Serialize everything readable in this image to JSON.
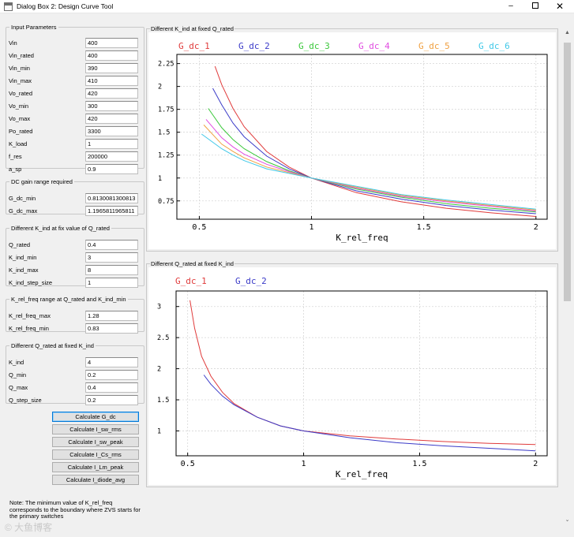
{
  "window": {
    "title": "Dialog Box 2: Design Curve Tool",
    "minimize": "–",
    "close": "✕"
  },
  "input_parameters": {
    "legend": "Input Parameters",
    "rows": [
      {
        "label": "Vin",
        "value": "400"
      },
      {
        "label": "Vin_rated",
        "value": "400"
      },
      {
        "label": "Vin_min",
        "value": "390"
      },
      {
        "label": "Vin_max",
        "value": "410"
      },
      {
        "label": "Vo_rated",
        "value": "420"
      },
      {
        "label": "Vo_min",
        "value": "300"
      },
      {
        "label": "Vo_max",
        "value": "420"
      },
      {
        "label": "Po_rated",
        "value": "3300"
      },
      {
        "label": "K_load",
        "value": "1"
      },
      {
        "label": "f_res",
        "value": "200000"
      },
      {
        "label": "a_sp",
        "value": "0.9"
      }
    ]
  },
  "dc_gain": {
    "legend": "DC gain range required",
    "rows": [
      {
        "label": "G_dc_min",
        "value": "0.8130081300813"
      },
      {
        "label": "G_dc_max",
        "value": "1.1965811965811"
      }
    ]
  },
  "k_ind": {
    "legend": "Different K_ind at fix value of Q_rated",
    "rows": [
      {
        "label": "Q_rated",
        "value": "0.4"
      },
      {
        "label": "K_ind_min",
        "value": "3"
      },
      {
        "label": "K_ind_max",
        "value": "8"
      },
      {
        "label": "K_ind_step_size",
        "value": "1"
      }
    ]
  },
  "k_rel": {
    "legend": "K_rel_freq range at Q_rated and K_ind_min",
    "rows": [
      {
        "label": "K_rel_freq_max",
        "value": "1.28"
      },
      {
        "label": "K_rel_freq_min",
        "value": "0.83"
      }
    ]
  },
  "q_rated": {
    "legend": "Different Q_rated at fixed K_ind",
    "rows": [
      {
        "label": "K_ind",
        "value": "4"
      },
      {
        "label": "Q_min",
        "value": "0.2"
      },
      {
        "label": "Q_max",
        "value": "0.4"
      },
      {
        "label": "Q_step_size",
        "value": "0.2"
      }
    ]
  },
  "buttons": [
    {
      "label": "Calculate G_dc"
    },
    {
      "label": "Calculate I_sw_rms"
    },
    {
      "label": "Calculate I_sw_peak"
    },
    {
      "label": "Calculate I_Cs_rms"
    },
    {
      "label": "Calculate I_Lm_peak"
    },
    {
      "label": "Calculate I_diode_avg"
    }
  ],
  "note": "Note: The minimum value of K_rel_freq corresponds to the boundary where ZVS starts for the primary switches",
  "watermark": "© 大鱼博客",
  "chart_data": [
    {
      "type": "line",
      "caption": "Different K_ind at fixed Q_rated",
      "xlabel": "K_rel_freq",
      "xlim": [
        0.4,
        2.05
      ],
      "ylim": [
        0.55,
        2.35
      ],
      "xticks": [
        0.5,
        1,
        1.5,
        2
      ],
      "xtick_labels": [
        "0.5",
        "1",
        "1.5",
        "2"
      ],
      "yticks": [
        0.75,
        1,
        1.25,
        1.5,
        1.75,
        2,
        2.25
      ],
      "ytick_labels": [
        "0.75",
        "1",
        "1.25",
        "1.5",
        "1.75",
        "2",
        "2.25"
      ],
      "grid": true,
      "legend_position": "top",
      "series": [
        {
          "name": "G_dc_1",
          "color": "#e03b3b",
          "x": [
            0.57,
            0.6,
            0.65,
            0.7,
            0.8,
            0.9,
            1.0,
            1.2,
            1.4,
            1.6,
            1.8,
            2.0
          ],
          "y": [
            2.22,
            2.02,
            1.76,
            1.56,
            1.29,
            1.12,
            1.0,
            0.84,
            0.74,
            0.67,
            0.62,
            0.58
          ]
        },
        {
          "name": "G_dc_2",
          "color": "#3b3bc8",
          "x": [
            0.56,
            0.6,
            0.65,
            0.7,
            0.8,
            0.9,
            1.0,
            1.2,
            1.4,
            1.6,
            1.8,
            2.0
          ],
          "y": [
            1.98,
            1.8,
            1.6,
            1.45,
            1.24,
            1.1,
            1.0,
            0.86,
            0.77,
            0.7,
            0.65,
            0.61
          ]
        },
        {
          "name": "G_dc_3",
          "color": "#3bc83b",
          "x": [
            0.54,
            0.6,
            0.65,
            0.7,
            0.8,
            0.9,
            1.0,
            1.2,
            1.4,
            1.6,
            1.8,
            2.0
          ],
          "y": [
            1.76,
            1.55,
            1.42,
            1.32,
            1.18,
            1.08,
            1.0,
            0.88,
            0.79,
            0.72,
            0.67,
            0.63
          ]
        },
        {
          "name": "G_dc_4",
          "color": "#e04ce0",
          "x": [
            0.53,
            0.6,
            0.65,
            0.7,
            0.8,
            0.9,
            1.0,
            1.2,
            1.4,
            1.6,
            1.8,
            2.0
          ],
          "y": [
            1.64,
            1.44,
            1.34,
            1.26,
            1.15,
            1.07,
            1.0,
            0.89,
            0.8,
            0.74,
            0.69,
            0.64
          ]
        },
        {
          "name": "G_dc_5",
          "color": "#f0a040",
          "x": [
            0.52,
            0.6,
            0.65,
            0.7,
            0.8,
            0.9,
            1.0,
            1.2,
            1.4,
            1.6,
            1.8,
            2.0
          ],
          "y": [
            1.58,
            1.37,
            1.29,
            1.22,
            1.12,
            1.06,
            1.0,
            0.9,
            0.81,
            0.75,
            0.7,
            0.65
          ]
        },
        {
          "name": "G_dc_6",
          "color": "#40c8e8",
          "x": [
            0.51,
            0.6,
            0.65,
            0.7,
            0.8,
            0.9,
            1.0,
            1.2,
            1.4,
            1.6,
            1.8,
            2.0
          ],
          "y": [
            1.48,
            1.32,
            1.25,
            1.19,
            1.1,
            1.05,
            1.0,
            0.91,
            0.82,
            0.76,
            0.71,
            0.66
          ]
        }
      ]
    },
    {
      "type": "line",
      "caption": "Different Q_rated at fixed K_ind",
      "xlabel": "K_rel_freq",
      "xlim": [
        0.45,
        2.05
      ],
      "ylim": [
        0.6,
        3.25
      ],
      "xticks": [
        0.5,
        1,
        1.5,
        2
      ],
      "xtick_labels": [
        "0.5",
        "1",
        "1.5",
        "2"
      ],
      "yticks": [
        1,
        1.5,
        2,
        2.5,
        3
      ],
      "ytick_labels": [
        "1",
        "1.5",
        "2",
        "2.5",
        "3"
      ],
      "grid": true,
      "legend_position": "top-left",
      "series": [
        {
          "name": "G_dc_1",
          "color": "#e03b3b",
          "x": [
            0.51,
            0.53,
            0.56,
            0.6,
            0.65,
            0.7,
            0.8,
            0.9,
            1.0,
            1.2,
            1.4,
            1.6,
            1.8,
            2.0
          ],
          "y": [
            3.1,
            2.65,
            2.2,
            1.88,
            1.62,
            1.44,
            1.22,
            1.08,
            1.0,
            0.92,
            0.87,
            0.83,
            0.8,
            0.78
          ]
        },
        {
          "name": "G_dc_2",
          "color": "#3b3bc8",
          "x": [
            0.57,
            0.6,
            0.65,
            0.7,
            0.8,
            0.9,
            1.0,
            1.2,
            1.4,
            1.6,
            1.8,
            2.0
          ],
          "y": [
            1.9,
            1.75,
            1.56,
            1.42,
            1.22,
            1.08,
            1.0,
            0.89,
            0.81,
            0.76,
            0.72,
            0.68
          ]
        }
      ]
    }
  ]
}
